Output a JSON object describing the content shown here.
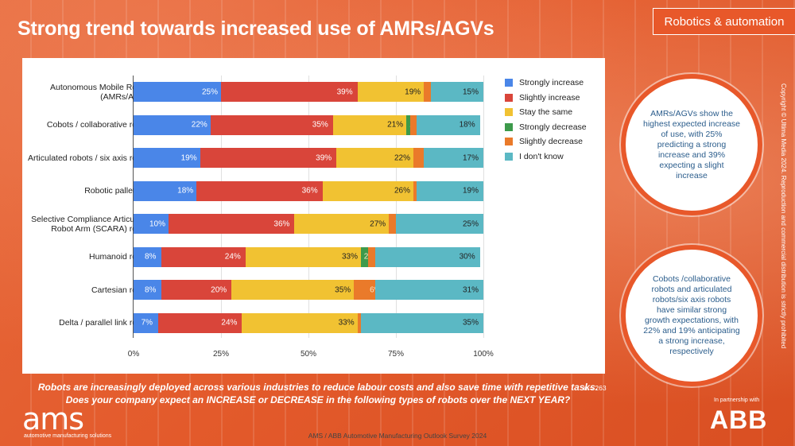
{
  "header": {
    "title": "Strong trend towards increased use of AMRs/AGVs",
    "tag": "Robotics & automation"
  },
  "chart_data": {
    "type": "bar",
    "orientation": "horizontal",
    "stacked": true,
    "percent": true,
    "categories": [
      "Autonomous Mobile Robots (AMRs/AGVs)",
      "Cobots / collaborative robots",
      "Articulated robots / six axis robots",
      "Robotic palletizers",
      "Selective Compliance Articulated Robot Arm (SCARA) robots",
      "Humanoid robots",
      "Cartesian robots",
      "Delta / parallel link robots"
    ],
    "series": [
      {
        "name": "Strongly increase",
        "color": "#4a86e8",
        "values": [
          25,
          22,
          19,
          18,
          10,
          8,
          8,
          7
        ]
      },
      {
        "name": "Slightly increase",
        "color": "#d9453a",
        "values": [
          39,
          35,
          39,
          36,
          36,
          24,
          20,
          24
        ]
      },
      {
        "name": "Stay the same",
        "color": "#f1c232",
        "values": [
          19,
          21,
          22,
          26,
          27,
          33,
          35,
          33
        ]
      },
      {
        "name": "Strongly decrease",
        "color": "#3d9a4b",
        "values": [
          0,
          1,
          0,
          0,
          0,
          2,
          0,
          0
        ]
      },
      {
        "name": "Slightly decrease",
        "color": "#ea7a2a",
        "values": [
          2,
          2,
          3,
          1,
          2,
          2,
          6,
          1
        ]
      },
      {
        "name": "I don't know",
        "color": "#5bb8c4",
        "values": [
          15,
          18,
          17,
          19,
          25,
          30,
          31,
          35
        ]
      }
    ],
    "xticks": [
      "0%",
      "25%",
      "50%",
      "75%",
      "100%"
    ],
    "xlim": [
      0,
      100
    ],
    "legend": "right",
    "grid": true
  },
  "callouts": [
    "AMRs/AGVs show the highest expected increase of use, with 25% predicting a strong increase and 39% expecting a slight increase",
    "Cobots /collaborative robots and articulated robots/six axis robots have similar strong growth expectations, with 22% and 19% anticipating a strong increase, respectively"
  ],
  "question": {
    "line1": "Robots are increasingly deployed across various industries to reduce labour costs and also save time with repetitive tasks.",
    "line2": "Does your company expect an INCREASE or DECREASE in the following types of robots over the NEXT YEAR?",
    "n": "n = 263"
  },
  "footer": {
    "survey": "AMS / ABB Automotive Manufacturing Outlook Survey 2024",
    "ams_logo": "ams",
    "ams_sub": "automotive manufacturing solutions",
    "partner": "In partnership with",
    "abb_logo": "ABB",
    "copyright": "Copyright © Ultima Media 2024. Reproduction and commercial distribution is strictly prohibited"
  }
}
